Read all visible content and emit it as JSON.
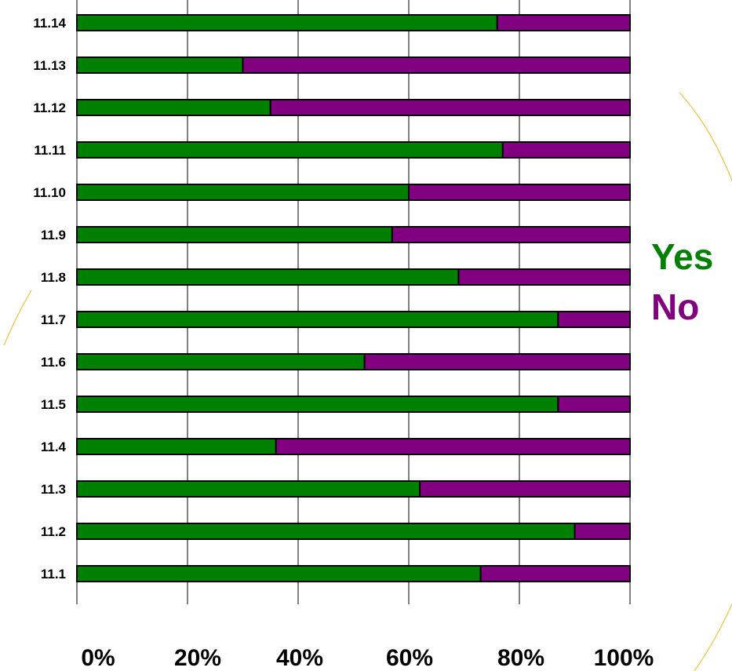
{
  "chart_data": {
    "type": "bar",
    "orientation": "horizontal",
    "stacked": true,
    "percent_stacked": true,
    "categories": [
      "11.14",
      "11.13",
      "11.12",
      "11.11",
      "11.10",
      "11.9",
      "11.8",
      "11.7",
      "11.6",
      "11.5",
      "11.4",
      "11.3",
      "11.2",
      "11.1"
    ],
    "series": [
      {
        "name": "Yes",
        "color": "#008000",
        "values": [
          76,
          30,
          35,
          77,
          60,
          57,
          69,
          87,
          52,
          87,
          36,
          62,
          90,
          73
        ]
      },
      {
        "name": "No",
        "color": "#800080",
        "values": [
          24,
          70,
          65,
          23,
          40,
          43,
          31,
          13,
          48,
          13,
          64,
          38,
          10,
          27
        ]
      }
    ],
    "xticks": [
      "0%",
      "20%",
      "40%",
      "60%",
      "80%",
      "100%"
    ],
    "xlim": [
      0,
      100
    ],
    "grid": true,
    "legend_position": "right"
  }
}
